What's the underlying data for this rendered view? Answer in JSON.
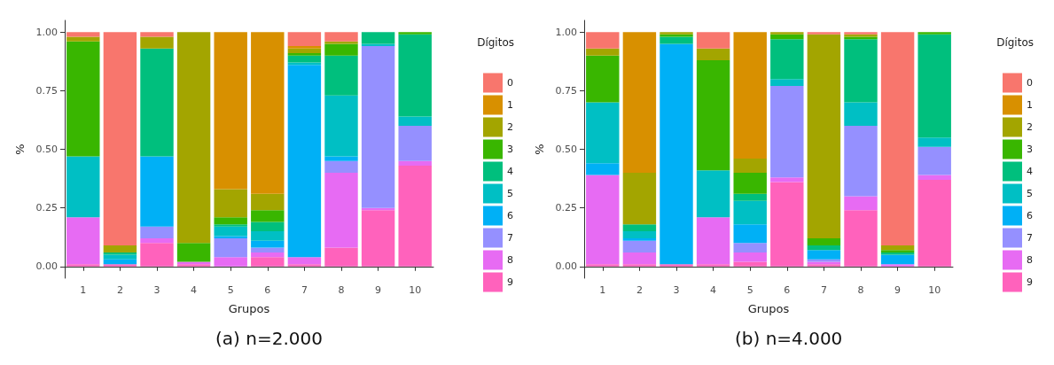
{
  "chart_data": [
    {
      "type": "bar",
      "stacked": true,
      "xlabel": "Grupos",
      "ylabel": "%",
      "legend_title": "Dígitos",
      "legend": "right",
      "annotations": [
        "(a) n=2.000"
      ],
      "categories": [
        "1",
        "2",
        "3",
        "4",
        "5",
        "6",
        "7",
        "8",
        "9",
        "10"
      ],
      "ylim": [
        -0.05,
        1.05
      ],
      "yticks": [
        {
          "value": 0,
          "label": "0.00"
        },
        {
          "value": 0.25,
          "label": "0.25"
        },
        {
          "value": 0.5,
          "label": "0.50"
        },
        {
          "value": 0.75,
          "label": "0.75"
        },
        {
          "value": 1,
          "label": "1.00"
        }
      ],
      "series": [
        {
          "name": "9",
          "color": "#ff62bc",
          "values": [
            0.01,
            0.01,
            0.1,
            0.01,
            0,
            0.04,
            0.01,
            0.08,
            0.24,
            0.43
          ]
        },
        {
          "name": "8",
          "color": "#e76bf3",
          "values": [
            0.2,
            0,
            0.02,
            0.01,
            0.04,
            0.02,
            0.03,
            0.32,
            0.01,
            0.02
          ]
        },
        {
          "name": "7",
          "color": "#9590ff",
          "values": [
            0,
            0,
            0.05,
            0,
            0.08,
            0.02,
            0,
            0.05,
            0.69,
            0.15
          ]
        },
        {
          "name": "6",
          "color": "#00b0f6",
          "values": [
            0,
            0.02,
            0.3,
            0,
            0.01,
            0.03,
            0.82,
            0.02,
            0,
            0
          ]
        },
        {
          "name": "5",
          "color": "#00bfc4",
          "values": [
            0.26,
            0.02,
            0,
            0,
            0.04,
            0.04,
            0.01,
            0.26,
            0.01,
            0.04
          ]
        },
        {
          "name": "4",
          "color": "#00bf7d",
          "values": [
            0,
            0.01,
            0.46,
            0,
            0.01,
            0.04,
            0.03,
            0.17,
            0.05,
            0.35
          ]
        },
        {
          "name": "3",
          "color": "#39b600",
          "values": [
            0.49,
            0,
            0,
            0.08,
            0.03,
            0.05,
            0.01,
            0.05,
            0,
            0.01
          ]
        },
        {
          "name": "2",
          "color": "#a3a500",
          "values": [
            0.02,
            0.03,
            0.05,
            0.9,
            0.12,
            0.07,
            0.02,
            0.01,
            0,
            0
          ]
        },
        {
          "name": "1",
          "color": "#d89000",
          "values": [
            0,
            0,
            0,
            0,
            0.67,
            0.69,
            0.01,
            0,
            0,
            0
          ]
        },
        {
          "name": "0",
          "color": "#f8766d",
          "values": [
            0.02,
            0.91,
            0.02,
            0,
            0,
            0,
            0.06,
            0.04,
            0,
            0
          ]
        }
      ]
    },
    {
      "type": "bar",
      "stacked": true,
      "xlabel": "Grupos",
      "ylabel": "%",
      "legend_title": "Dígitos",
      "legend": "right",
      "annotations": [
        "(b) n=4.000"
      ],
      "categories": [
        "1",
        "2",
        "3",
        "4",
        "5",
        "6",
        "7",
        "8",
        "9",
        "10"
      ],
      "ylim": [
        -0.05,
        1.05
      ],
      "yticks": [
        {
          "value": 0,
          "label": "0.00"
        },
        {
          "value": 0.25,
          "label": "0.25"
        },
        {
          "value": 0.5,
          "label": "0.50"
        },
        {
          "value": 0.75,
          "label": "0.75"
        },
        {
          "value": 1,
          "label": "1.00"
        }
      ],
      "series": [
        {
          "name": "9",
          "color": "#ff62bc",
          "values": [
            0.01,
            0.01,
            0.01,
            0.01,
            0.02,
            0.36,
            0.01,
            0.24,
            0,
            0.37
          ]
        },
        {
          "name": "8",
          "color": "#e76bf3",
          "values": [
            0.38,
            0.05,
            0,
            0.2,
            0.04,
            0.02,
            0.01,
            0.06,
            0.01,
            0.02
          ]
        },
        {
          "name": "7",
          "color": "#9590ff",
          "values": [
            0,
            0.05,
            0,
            0,
            0.04,
            0.39,
            0.01,
            0.3,
            0,
            0.12
          ]
        },
        {
          "name": "6",
          "color": "#00b0f6",
          "values": [
            0.05,
            0.01,
            0.94,
            0,
            0.08,
            0,
            0.04,
            0,
            0.04,
            0
          ]
        },
        {
          "name": "5",
          "color": "#00bfc4",
          "values": [
            0.26,
            0.03,
            0,
            0.2,
            0.1,
            0.03,
            0,
            0.1,
            0,
            0.04
          ]
        },
        {
          "name": "4",
          "color": "#00bf7d",
          "values": [
            0,
            0.03,
            0.03,
            0,
            0.03,
            0.17,
            0.02,
            0.27,
            0.01,
            0.44
          ]
        },
        {
          "name": "3",
          "color": "#39b600",
          "values": [
            0.2,
            0,
            0.01,
            0.47,
            0.09,
            0.02,
            0.03,
            0.01,
            0.01,
            0.01
          ]
        },
        {
          "name": "2",
          "color": "#a3a500",
          "values": [
            0.03,
            0.22,
            0.01,
            0.05,
            0.06,
            0.01,
            0.87,
            0.01,
            0.02,
            0
          ]
        },
        {
          "name": "1",
          "color": "#d89000",
          "values": [
            0,
            0.6,
            0,
            0,
            0.54,
            0,
            0,
            0,
            0,
            0
          ]
        },
        {
          "name": "0",
          "color": "#f8766d",
          "values": [
            0.07,
            0,
            0,
            0.07,
            0,
            0,
            0.01,
            0.01,
            0.91,
            0
          ]
        }
      ]
    }
  ]
}
